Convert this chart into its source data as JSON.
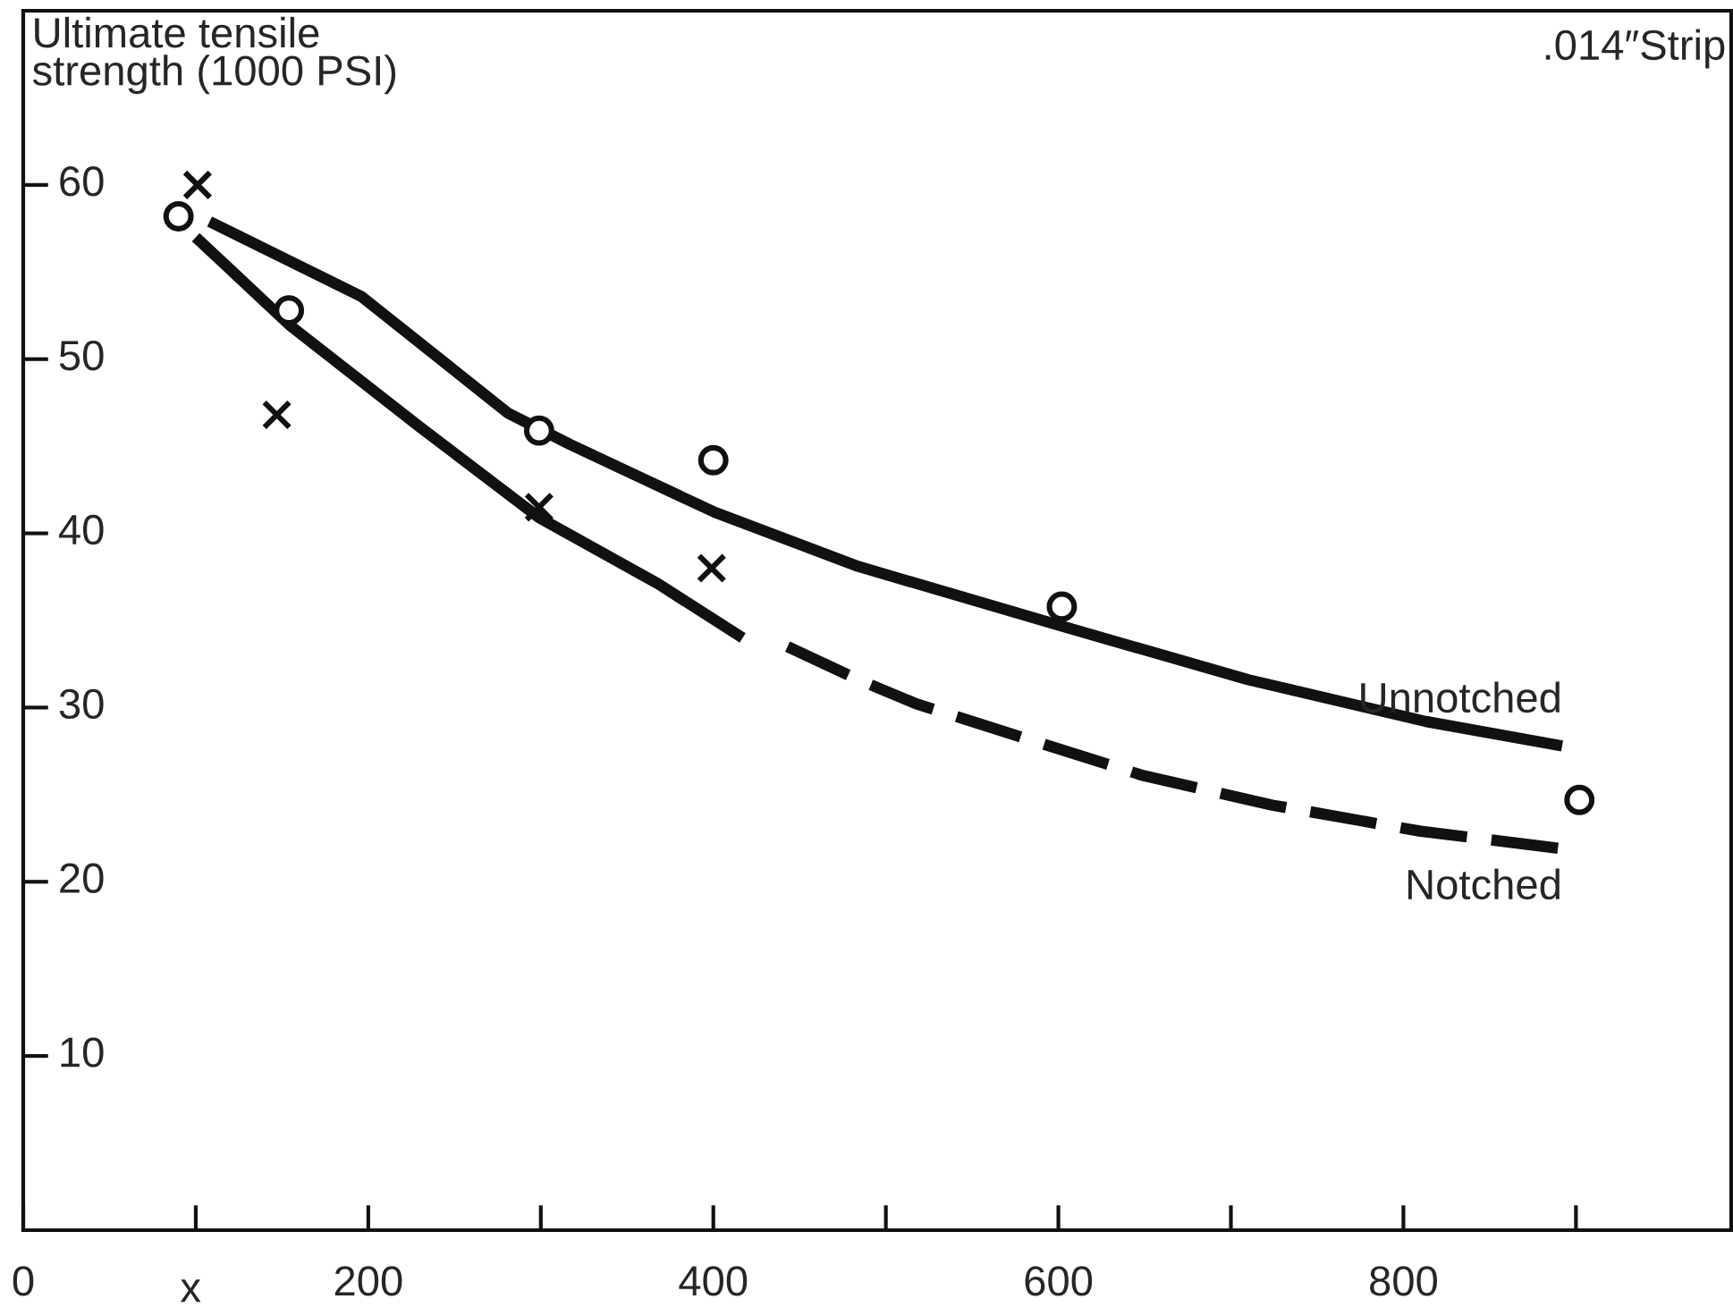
{
  "chart_data": {
    "type": "line",
    "ylabel": "Ultimate tensile\nstrength (1000 PSI)",
    "annotations": [
      ".014″Strip",
      "x"
    ],
    "xlim": [
      0,
      990
    ],
    "ylim": [
      0,
      70
    ],
    "xticks": [
      0,
      {
        "value": 100,
        "label": null
      },
      200,
      {
        "value": 300,
        "label": null
      },
      400,
      {
        "value": 500,
        "label": null
      },
      600,
      {
        "value": 700,
        "label": null
      },
      800,
      {
        "value": 900,
        "label": null
      }
    ],
    "yticks": [
      10,
      20,
      30,
      40,
      50,
      60
    ],
    "series": [
      {
        "name": "Unnotched",
        "line_style": "solid",
        "color": "#111111",
        "x": [
          108,
          196,
          281,
          317,
          401,
          484,
          601,
          710,
          813,
          892
        ],
        "values": [
          57.9,
          53.6,
          46.9,
          45.1,
          41.2,
          38.1,
          34.7,
          31.6,
          29.2,
          27.8
        ]
      },
      {
        "line_style": "solid",
        "color": "#111111",
        "x": [
          100,
          155,
          230,
          299,
          368,
          417
        ],
        "values": [
          57.0,
          51.9,
          46.1,
          40.9,
          37.1,
          34.0
        ]
      },
      {
        "name": "Notched",
        "line_style": "dashed",
        "color": "#111111",
        "x": [
          443,
          484,
          518,
          649,
          724,
          810,
          892
        ],
        "values": [
          33.5,
          31.6,
          30.2,
          26.1,
          24.4,
          22.9,
          21.9
        ]
      },
      {
        "type": "scatter",
        "marker": "circle",
        "color": "#111111",
        "x": [
          90,
          154,
          299,
          400,
          602,
          902
        ],
        "values": [
          58.2,
          52.8,
          45.9,
          44.2,
          35.8,
          24.7
        ]
      },
      {
        "type": "scatter",
        "marker": "cross",
        "color": "#111111",
        "x": [
          101,
          147,
          299,
          399
        ],
        "values": [
          60.0,
          46.8,
          41.5,
          38.0
        ]
      }
    ]
  }
}
